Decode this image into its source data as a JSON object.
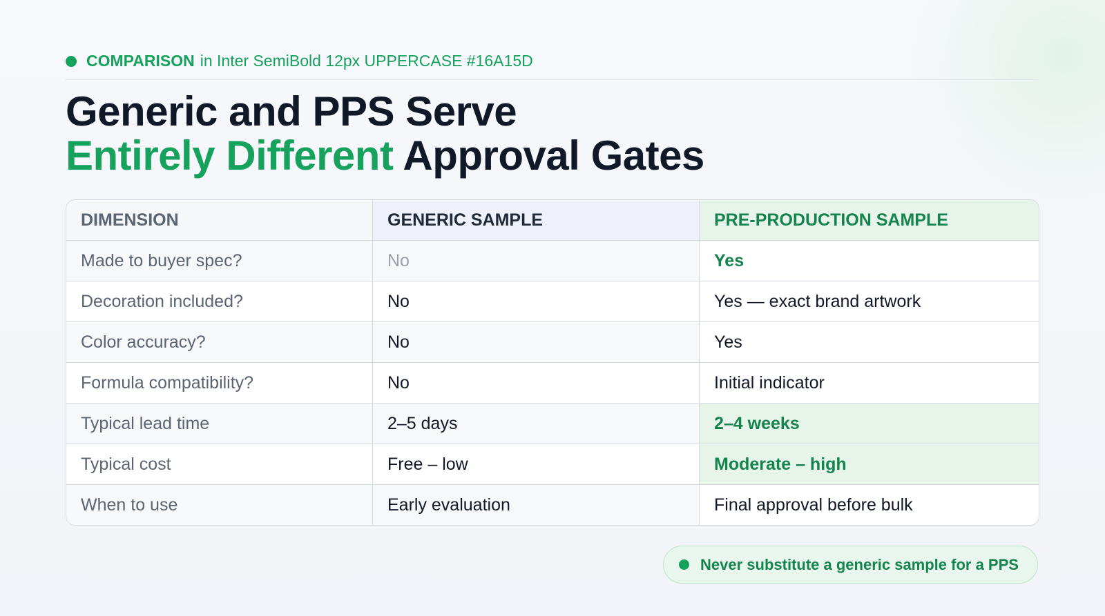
{
  "eyebrow": {
    "label": "COMPARISON",
    "note": "in Inter SemiBold 12px UPPERCASE #16A15D"
  },
  "title": {
    "line1": "Generic and PPS Serve",
    "highlight": "Entirely Different",
    "rest": "Approval Gates"
  },
  "table": {
    "header": [
      "DIMENSION",
      "GENERIC SAMPLE",
      "PRE-PRODUCTION SAMPLE"
    ],
    "rows": [
      [
        "Made to buyer spec?",
        "No",
        "Yes"
      ],
      [
        "Decoration included?",
        "No",
        "Yes — exact brand artwork"
      ],
      [
        "Color accuracy?",
        "No",
        "Yes"
      ],
      [
        "Formula compatibility?",
        "No",
        "Initial indicator"
      ],
      [
        "Typical lead time",
        "2–5 days",
        "2–4 weeks"
      ],
      [
        "Typical cost",
        "Free – low",
        "Moderate – high"
      ],
      [
        "When to use",
        "Early evaluation",
        "Final approval before bulk"
      ]
    ]
  },
  "callout": "Never substitute a generic sample for a PPS"
}
